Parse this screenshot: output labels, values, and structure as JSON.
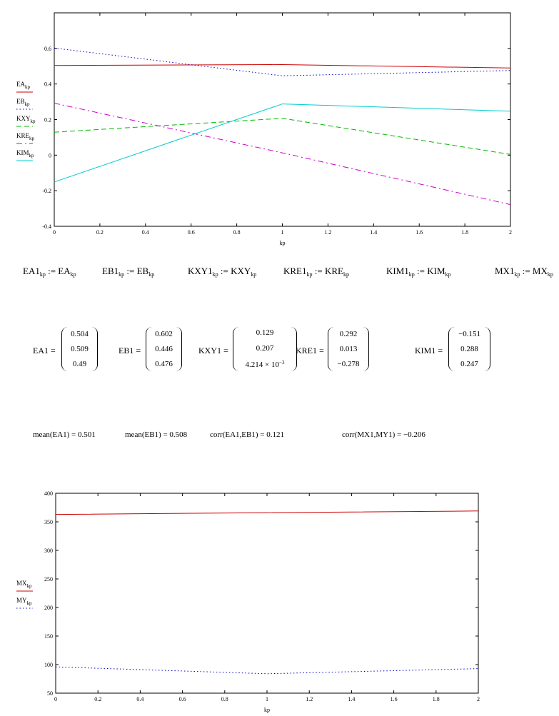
{
  "chart_data": [
    {
      "type": "line",
      "xlabel": "kp",
      "x": [
        0,
        1,
        2
      ],
      "xlim": [
        0,
        2
      ],
      "ylim": [
        -0.4,
        0.8
      ],
      "xticks": [
        "0",
        "0.2",
        "0.4",
        "0.6",
        "0.8",
        "1",
        "1.2",
        "1.4",
        "1.6",
        "1.8",
        "2"
      ],
      "yticks": [
        "-0.4",
        "-0.2",
        "0",
        "0.2",
        "0.4",
        "0.6"
      ],
      "legend_position": "left",
      "series": [
        {
          "name": "EA",
          "sub": "kp",
          "values": [
            0.504,
            0.509,
            0.49
          ],
          "color": "#cc0000",
          "dash": "solid"
        },
        {
          "name": "EB",
          "sub": "kp",
          "values": [
            0.602,
            0.446,
            0.476
          ],
          "color": "#0000cc",
          "dash": "dot"
        },
        {
          "name": "KXY",
          "sub": "kp",
          "values": [
            0.129,
            0.207,
            0.004214
          ],
          "color": "#00bb00",
          "dash": "dash"
        },
        {
          "name": "KRE",
          "sub": "kp",
          "values": [
            0.292,
            0.013,
            -0.278
          ],
          "color": "#cc00cc",
          "dash": "dashdot"
        },
        {
          "name": "KIM",
          "sub": "kp",
          "values": [
            -0.151,
            0.288,
            0.247
          ],
          "color": "#00cccc",
          "dash": "solid"
        }
      ]
    },
    {
      "type": "line",
      "xlabel": "kp",
      "x": [
        0,
        1,
        2
      ],
      "xlim": [
        0,
        2
      ],
      "ylim": [
        50,
        400
      ],
      "xticks": [
        "0",
        "0.2",
        "0.4",
        "0.6",
        "0.8",
        "1",
        "1.2",
        "1.4",
        "1.6",
        "1.8",
        "2"
      ],
      "yticks": [
        "50",
        "100",
        "150",
        "200",
        "250",
        "300",
        "350",
        "400"
      ],
      "legend_position": "left",
      "series": [
        {
          "name": "MX",
          "sub": "kp",
          "values": [
            363,
            366,
            369
          ],
          "color": "#cc0000",
          "dash": "solid"
        },
        {
          "name": "MY",
          "sub": "kp",
          "values": [
            96,
            84,
            93
          ],
          "color": "#0000cc",
          "dash": "dot"
        }
      ]
    }
  ],
  "definitions": [
    {
      "lhs": "EA1",
      "rhs": "EA"
    },
    {
      "lhs": "EB1",
      "rhs": "EB"
    },
    {
      "lhs": "KXY1",
      "rhs": "KXY"
    },
    {
      "lhs": "KRE1",
      "rhs": "KRE"
    },
    {
      "lhs": "KIM1",
      "rhs": "KIM"
    },
    {
      "lhs": "MX1",
      "rhs": "MX"
    }
  ],
  "subscript": "kp",
  "assign_op": ":=",
  "matrices": {
    "ea1": {
      "name": "EA1 =",
      "values": [
        "0.504",
        "0.509",
        "0.49"
      ]
    },
    "eb1": {
      "name": "EB1 =",
      "values": [
        "0.602",
        "0.446",
        "0.476"
      ]
    },
    "kxy1": {
      "name": "KXY1 =",
      "values": [
        "0.129",
        "0.207",
        "4.214 × 10"
      ],
      "exp": "−3"
    },
    "kre1": {
      "name": "KRE1 =",
      "values": [
        "0.292",
        "0.013",
        "−0.278"
      ]
    },
    "kim1": {
      "name": "KIM1 =",
      "values": [
        "−0.151",
        "0.288",
        "0.247"
      ]
    }
  },
  "stats": {
    "mean_ea1": "mean(EA1) = 0.501",
    "mean_eb1": "mean(EB1) = 0.508",
    "corr_ea1_eb1": "corr(EA1,EB1) = 0.121",
    "corr_mx1_my1": "corr(MX1,MY1) = −0.206"
  }
}
